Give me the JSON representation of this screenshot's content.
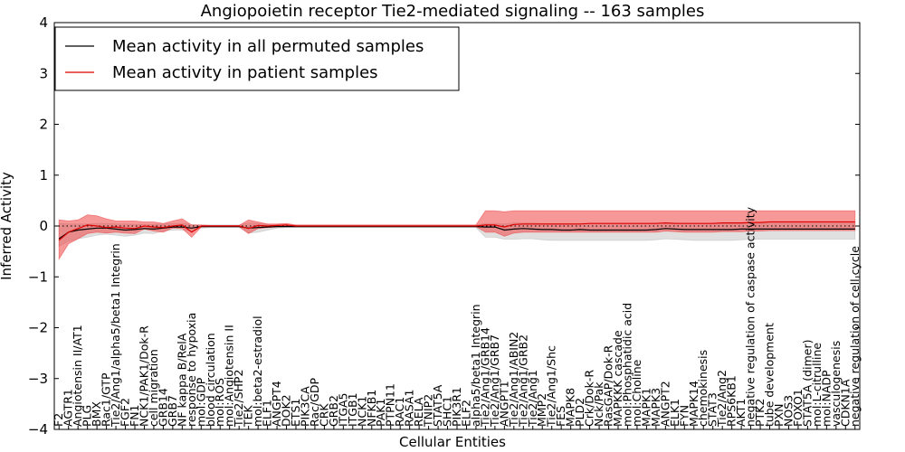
{
  "chart_data": {
    "type": "line",
    "title": "Angiopoietin receptor Tie2-mediated signaling -- 163 samples",
    "xlabel": "Cellular Entities",
    "ylabel": "Inferred Activity",
    "ylim": [
      -4,
      4
    ],
    "yticks": [
      "−4",
      "−3",
      "−2",
      "−1",
      "0",
      "1",
      "2",
      "3",
      "4"
    ],
    "legend_position": "top-left",
    "grid": false,
    "categories": [
      "F2",
      "AGTR1",
      "Angiotensin II/AT1",
      "PLG",
      "BMX",
      "Rac1/GTP",
      "Tie2/Ang1/alpha5/beta1 Integrin",
      "FGF2",
      "FN1",
      "NCK1/PAK1/Dok-R",
      "cell migration",
      "GRB14",
      "GRB7",
      "NF kappa B/RelA",
      "response to hypoxia",
      "mol:GDP",
      "blood circulation",
      "mol:ROS",
      "mol:Angiotensin II",
      "Tie2/SHP2",
      "TEK",
      "mol:beta2-estradiol",
      "ELF1",
      "ANGPT4",
      "DOK2",
      "ETS1",
      "PIK3CA",
      "Rac/GDP",
      "CRK",
      "GRB2",
      "ITGA5",
      "ITGB1",
      "NCK1",
      "NFKB1",
      "PAK1",
      "PTPN11",
      "RAC1",
      "RASA1",
      "RELA",
      "TNIP2",
      "STAT5A",
      "SHC1",
      "PIK3R1",
      "ELF2",
      "alpha5/beta1 Integrin",
      "Tie2/Ang1/GRB14",
      "Tie2/Ang1/GRB7",
      "ANGPT1",
      "Tie2/Ang1/ABIN2",
      "Tie2/Ang1/GRB2",
      "Tie2/Ang1",
      "MMP2",
      "Tie2/Ang1/Shc",
      "FES",
      "MAPK8",
      "PLD2",
      "Crk/Dok-R",
      "Nck/Pak",
      "RasGAP/Dok-R",
      "MAPKKK cascade",
      "mol:Phosphatidic acid",
      "mol:Choline",
      "MAPK1",
      "MAPK3",
      "ANGPT2",
      "ELK1",
      "FYN",
      "MAPK14",
      "chemokinesis",
      "STAT3",
      "Tie2/Ang2",
      "RPS6KB1",
      "AKT1",
      "negative regulation of caspase activity",
      "PTK2",
      "tube development",
      "PXN",
      "NOS3",
      "FOXO1",
      "STAT5A (dimer)",
      "mol:L-citrulline",
      "mol:NADP",
      "vasculogenesis",
      "CDKN1A",
      "negative regulation of cell cycle"
    ],
    "series": [
      {
        "name": "Mean activity in all permuted samples",
        "color": "#000000",
        "band_color": "#bbbbbb",
        "values": [
          -0.25,
          -0.12,
          -0.08,
          -0.06,
          -0.04,
          -0.04,
          -0.06,
          -0.08,
          -0.07,
          -0.05,
          -0.06,
          -0.04,
          -0.02,
          -0.02,
          -0.04,
          -0.01,
          -0.01,
          -0.01,
          -0.01,
          -0.01,
          -0.04,
          -0.03,
          -0.02,
          -0.01,
          -0.01,
          -0.01,
          -0.01,
          -0.01,
          -0.01,
          -0.01,
          -0.01,
          -0.01,
          -0.01,
          -0.01,
          -0.01,
          -0.01,
          -0.01,
          -0.01,
          -0.01,
          -0.01,
          -0.01,
          -0.01,
          -0.01,
          -0.01,
          -0.01,
          -0.02,
          -0.02,
          -0.08,
          -0.06,
          -0.05,
          -0.06,
          -0.07,
          -0.07,
          -0.08,
          -0.08,
          -0.07,
          -0.08,
          -0.08,
          -0.08,
          -0.08,
          -0.08,
          -0.08,
          -0.08,
          -0.07,
          -0.05,
          -0.06,
          -0.07,
          -0.07,
          -0.07,
          -0.07,
          -0.07,
          -0.07,
          -0.06,
          -0.06,
          -0.06,
          -0.06,
          -0.06,
          -0.06,
          -0.06,
          -0.06,
          -0.06,
          -0.06,
          -0.06,
          -0.06,
          -0.06
        ],
        "lower": [
          -0.4,
          -0.3,
          -0.25,
          -0.22,
          -0.18,
          -0.16,
          -0.18,
          -0.2,
          -0.18,
          -0.14,
          -0.15,
          -0.1,
          -0.08,
          -0.08,
          -0.1,
          -0.04,
          -0.03,
          -0.03,
          -0.03,
          -0.03,
          -0.14,
          -0.12,
          -0.08,
          -0.04,
          -0.03,
          -0.03,
          -0.03,
          -0.03,
          -0.03,
          -0.03,
          -0.03,
          -0.03,
          -0.03,
          -0.03,
          -0.03,
          -0.03,
          -0.03,
          -0.03,
          -0.03,
          -0.03,
          -0.03,
          -0.03,
          -0.03,
          -0.03,
          -0.03,
          -0.22,
          -0.22,
          -0.26,
          -0.26,
          -0.25,
          -0.25,
          -0.27,
          -0.28,
          -0.28,
          -0.28,
          -0.28,
          -0.28,
          -0.28,
          -0.28,
          -0.28,
          -0.28,
          -0.28,
          -0.28,
          -0.27,
          -0.25,
          -0.26,
          -0.27,
          -0.28,
          -0.28,
          -0.28,
          -0.28,
          -0.28,
          -0.27,
          -0.26,
          -0.26,
          -0.26,
          -0.26,
          -0.26,
          -0.26,
          -0.26,
          -0.26,
          -0.26,
          -0.26,
          -0.26,
          -0.26
        ],
        "upper": [
          0.05,
          0.04,
          0.04,
          0.04,
          0.05,
          0.05,
          0.04,
          0.04,
          0.03,
          0.03,
          0.03,
          0.04,
          0.05,
          0.05,
          0.03,
          0.02,
          0.02,
          0.02,
          0.02,
          0.02,
          0.06,
          0.05,
          0.03,
          0.02,
          0.02,
          0.02,
          0.02,
          0.02,
          0.02,
          0.02,
          0.02,
          0.02,
          0.02,
          0.02,
          0.02,
          0.02,
          0.02,
          0.02,
          0.02,
          0.02,
          0.02,
          0.02,
          0.02,
          0.02,
          0.02,
          0.05,
          0.05,
          0.04,
          0.06,
          0.06,
          0.06,
          0.05,
          0.05,
          0.05,
          0.05,
          0.05,
          0.05,
          0.05,
          0.05,
          0.05,
          0.05,
          0.05,
          0.05,
          0.05,
          0.06,
          0.06,
          0.05,
          0.05,
          0.05,
          0.05,
          0.05,
          0.05,
          0.05,
          0.05,
          0.05,
          0.05,
          0.05,
          0.05,
          0.05,
          0.05,
          0.05,
          0.05,
          0.05,
          0.05,
          0.05
        ]
      },
      {
        "name": "Mean activity in patient samples",
        "color": "#dd0000",
        "band_color": "#ee4444",
        "values": [
          -0.28,
          -0.12,
          -0.05,
          0.02,
          0.0,
          -0.03,
          -0.02,
          -0.04,
          -0.05,
          0.0,
          -0.02,
          -0.03,
          0.0,
          0.02,
          -0.12,
          0.0,
          0.0,
          0.0,
          0.0,
          0.0,
          -0.05,
          0.01,
          0.0,
          0.01,
          0.02,
          0.0,
          0.0,
          0.0,
          0.0,
          0.0,
          0.0,
          0.0,
          0.0,
          0.0,
          0.0,
          0.0,
          0.0,
          0.0,
          0.0,
          0.0,
          0.0,
          0.0,
          0.0,
          0.0,
          0.0,
          0.02,
          0.02,
          -0.02,
          0.03,
          0.04,
          0.04,
          0.04,
          0.04,
          0.04,
          0.04,
          0.04,
          0.05,
          0.05,
          0.05,
          0.05,
          0.05,
          0.05,
          0.05,
          0.05,
          0.06,
          0.05,
          0.05,
          0.05,
          0.05,
          0.05,
          0.06,
          0.06,
          0.06,
          0.07,
          0.07,
          0.08,
          0.08,
          0.08,
          0.08,
          0.08,
          0.08,
          0.08,
          0.08,
          0.08,
          0.08
        ],
        "lower": [
          -0.65,
          -0.35,
          -0.25,
          -0.15,
          -0.12,
          -0.14,
          -0.12,
          -0.14,
          -0.15,
          -0.06,
          -0.1,
          -0.12,
          -0.04,
          -0.05,
          -0.22,
          -0.02,
          -0.01,
          -0.01,
          -0.01,
          -0.01,
          -0.15,
          -0.05,
          -0.03,
          -0.02,
          -0.01,
          -0.01,
          -0.01,
          -0.01,
          -0.01,
          -0.01,
          -0.01,
          -0.01,
          -0.01,
          -0.01,
          -0.01,
          -0.01,
          -0.01,
          -0.01,
          -0.01,
          -0.01,
          -0.01,
          -0.01,
          -0.01,
          -0.01,
          -0.01,
          -0.12,
          -0.12,
          -0.2,
          -0.14,
          -0.12,
          -0.12,
          -0.12,
          -0.12,
          -0.12,
          -0.12,
          -0.12,
          -0.12,
          -0.12,
          -0.12,
          -0.12,
          -0.12,
          -0.12,
          -0.12,
          -0.12,
          -0.1,
          -0.11,
          -0.12,
          -0.12,
          -0.12,
          -0.12,
          -0.11,
          -0.11,
          -0.11,
          -0.1,
          -0.1,
          -0.09,
          -0.09,
          -0.09,
          -0.09,
          -0.09,
          -0.09,
          -0.09,
          -0.09,
          -0.09,
          -0.09
        ],
        "upper": [
          0.12,
          0.1,
          0.12,
          0.22,
          0.2,
          0.14,
          0.1,
          0.1,
          0.1,
          0.08,
          0.08,
          0.05,
          0.1,
          0.14,
          0.02,
          0.02,
          0.01,
          0.01,
          0.01,
          0.01,
          0.12,
          0.08,
          0.04,
          0.04,
          0.05,
          0.02,
          0.02,
          0.02,
          0.02,
          0.02,
          0.02,
          0.02,
          0.02,
          0.02,
          0.02,
          0.02,
          0.02,
          0.02,
          0.02,
          0.02,
          0.02,
          0.02,
          0.02,
          0.02,
          0.02,
          0.3,
          0.3,
          0.28,
          0.3,
          0.3,
          0.3,
          0.3,
          0.3,
          0.3,
          0.3,
          0.3,
          0.3,
          0.3,
          0.3,
          0.3,
          0.3,
          0.3,
          0.3,
          0.3,
          0.3,
          0.3,
          0.3,
          0.3,
          0.3,
          0.3,
          0.3,
          0.3,
          0.3,
          0.3,
          0.3,
          0.3,
          0.3,
          0.3,
          0.3,
          0.3,
          0.3,
          0.3,
          0.3,
          0.3,
          0.3
        ]
      }
    ]
  }
}
